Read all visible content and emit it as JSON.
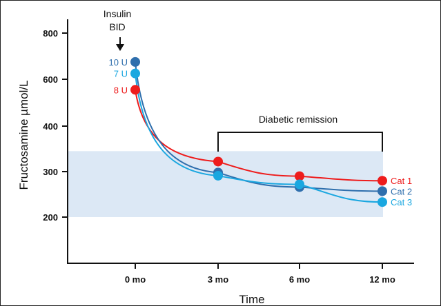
{
  "chart_data": {
    "type": "line",
    "xlabel": "Time",
    "ylabel": "Fructosamine µmol/L",
    "x_ticks": [
      "0 mo",
      "3 mo",
      "6  mo",
      "12 mo"
    ],
    "y_ticks": [
      200,
      300,
      400,
      600,
      800
    ],
    "ylim": [
      200,
      800
    ],
    "reference_band": {
      "from": 200,
      "to": 345,
      "color": "#dce8f5"
    },
    "annotations": {
      "insulin": "Insulin",
      "bid": "BID",
      "remission": "Diabetic remission"
    },
    "series": [
      {
        "name": "Cat 1",
        "color": "#ee1c1c",
        "dose": "8 U",
        "values": [
          555,
          322,
          290,
          280
        ]
      },
      {
        "name": "Cat 2",
        "color": "#2f6fad",
        "dose": "10 U",
        "values": [
          675,
          298,
          266,
          257
        ]
      },
      {
        "name": "Cat 3",
        "color": "#1aa7e0",
        "dose": "7 U",
        "values": [
          625,
          291,
          272,
          233
        ]
      }
    ]
  }
}
